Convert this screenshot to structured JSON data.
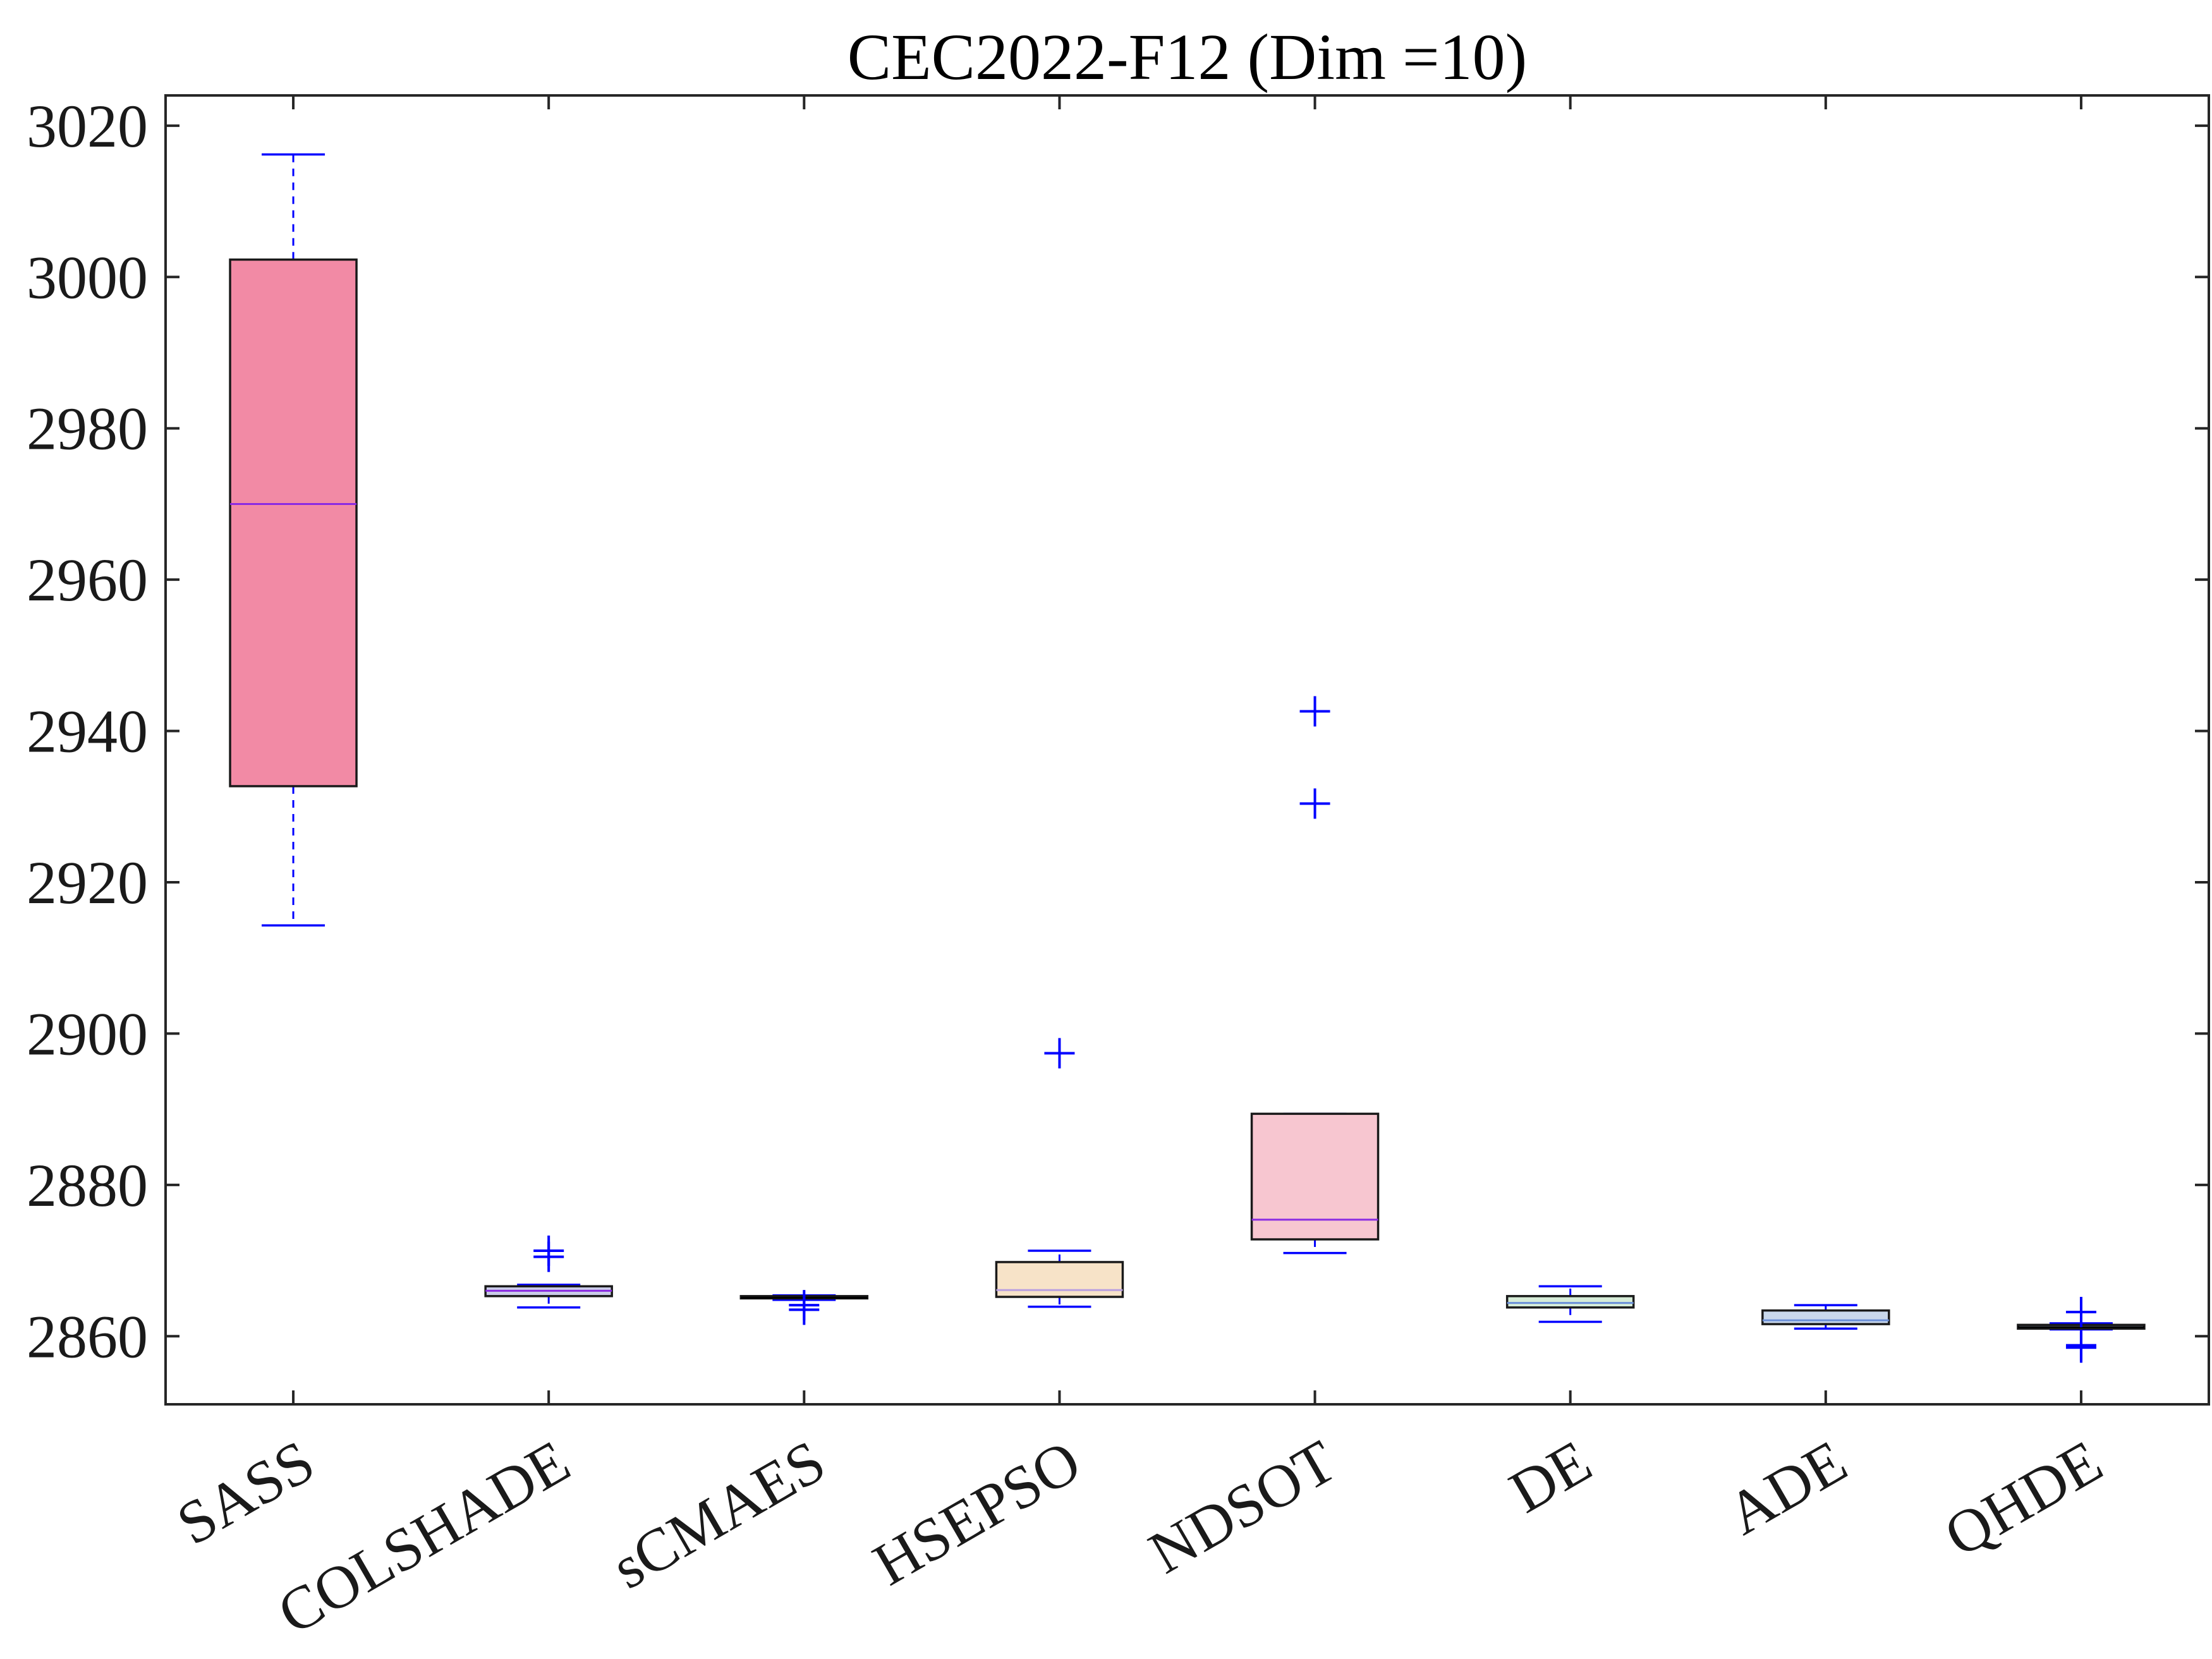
{
  "chart_data": {
    "type": "box",
    "title": "CEC2022-F12 (Dim =10)",
    "xlabel": "",
    "ylabel": "",
    "ylim": [
      2851,
      3024
    ],
    "yticks": [
      2860,
      2880,
      2900,
      2920,
      2940,
      2960,
      2980,
      3000,
      3020
    ],
    "grid": false,
    "categories": [
      "SASS",
      "COLSHADE",
      "sCMAES",
      "HSEPSO",
      "NDSOT",
      "DE",
      "ADE",
      "QHDE"
    ],
    "series": [
      {
        "name": "SASS",
        "whisker_low": 2914.3,
        "q1": 2932.7,
        "median": 2970.0,
        "q3": 3002.3,
        "whisker_high": 3016.2,
        "outliers": [],
        "color": "#f28aa5",
        "median_color": "#8a2be2"
      },
      {
        "name": "COLSHADE",
        "whisker_low": 2863.8,
        "q1": 2865.3,
        "median": 2866.0,
        "q3": 2866.6,
        "whisker_high": 2866.8,
        "outliers": [
          2870.5,
          2871.3
        ],
        "color": "#c9cbe8",
        "median_color": "#8a2be2"
      },
      {
        "name": "sCMAES",
        "whisker_low": 2864.8,
        "q1": 2865.0,
        "median": 2865.1,
        "q3": 2865.3,
        "whisker_high": 2865.4,
        "outliers": [
          2863.5,
          2864.1
        ],
        "color": "#b8c4d8",
        "median_color": "#000000"
      },
      {
        "name": "HSEPSO",
        "whisker_low": 2863.9,
        "q1": 2865.2,
        "median": 2866.1,
        "q3": 2869.8,
        "whisker_high": 2871.3,
        "outliers": [
          2897.4
        ],
        "color": "#f7e3c8",
        "median_color": "#b9a0e0"
      },
      {
        "name": "NDSOT",
        "whisker_low": 2871.0,
        "q1": 2872.8,
        "median": 2875.4,
        "q3": 2889.4,
        "whisker_high": 2889.4,
        "outliers": [
          2930.4,
          2942.6
        ],
        "color": "#f7c6d0",
        "median_color": "#8a2be2"
      },
      {
        "name": "DE",
        "whisker_low": 2861.9,
        "q1": 2863.8,
        "median": 2864.4,
        "q3": 2865.3,
        "whisker_high": 2866.6,
        "outliers": [],
        "color": "#d6ecd8",
        "median_color": "#6a8fd8"
      },
      {
        "name": "ADE",
        "whisker_low": 2861.0,
        "q1": 2861.6,
        "median": 2862.1,
        "q3": 2863.4,
        "whisker_high": 2864.1,
        "outliers": [],
        "color": "#c9d8ec",
        "median_color": "#6a8fd8"
      },
      {
        "name": "QHDE",
        "whisker_low": 2860.9,
        "q1": 2861.0,
        "median": 2861.2,
        "q3": 2861.5,
        "whisker_high": 2861.7,
        "outliers": [
          2863.2,
          2858.8,
          2858.5
        ],
        "color": "#b8c4d8",
        "median_color": "#000000"
      }
    ]
  }
}
